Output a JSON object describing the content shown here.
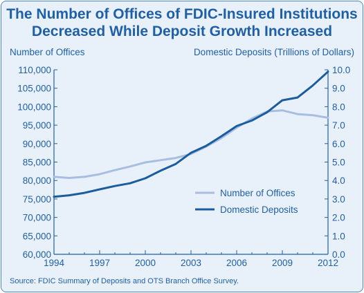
{
  "title_line1": "The Number of Offices of FDIC-Insured Institutions",
  "title_line2": "Decreased While Deposit Growth Increased",
  "source": "Source: FDIC Summary of Deposits and OTS Branch Office Survey.",
  "colors": {
    "frame_border": "#4a86c5",
    "background": "#e8f1fa",
    "text": "#1f5fa8",
    "offices": "#a9bde0",
    "deposits": "#1a5c9e"
  },
  "chart_data": {
    "type": "line",
    "title": "The Number of Offices of FDIC-Insured Institutions Decreased While Deposit Growth Increased",
    "ylabel_left": "Number of Offices",
    "ylabel_right": "Domestic Deposits (Trillions of Dollars)",
    "x": [
      1994,
      1995,
      1996,
      1997,
      1998,
      1999,
      2000,
      2001,
      2002,
      2003,
      2004,
      2005,
      2006,
      2007,
      2008,
      2009,
      2010,
      2011,
      2012
    ],
    "x_ticks": [
      "1994",
      "1997",
      "2000",
      "2003",
      "2006",
      "2009",
      "2012"
    ],
    "y_left_ticks": [
      "60,000",
      "65,000",
      "70,000",
      "75,000",
      "80,000",
      "85,000",
      "90,000",
      "95,000",
      "100,000",
      "105,000",
      "110,000"
    ],
    "y_right_ticks": [
      "0.0",
      "1.0",
      "2.0",
      "3.0",
      "4.0",
      "5.0",
      "6.0",
      "7.0",
      "8.0",
      "9.0",
      "10.0"
    ],
    "ylim_left": [
      60000,
      110000
    ],
    "ylim_right": [
      0,
      10
    ],
    "grid": false,
    "legend_position": "right",
    "series": [
      {
        "name": "Number of Offices",
        "axis": "left",
        "values": [
          81000,
          80700,
          81000,
          81700,
          82800,
          83800,
          84900,
          85500,
          86100,
          87200,
          89200,
          91500,
          94300,
          96800,
          98700,
          99000,
          98000,
          97700,
          97000
        ]
      },
      {
        "name": "Domestic Deposits",
        "axis": "right",
        "values": [
          3.12,
          3.2,
          3.33,
          3.52,
          3.7,
          3.85,
          4.12,
          4.53,
          4.9,
          5.5,
          5.88,
          6.4,
          6.95,
          7.25,
          7.7,
          8.35,
          8.5,
          9.15,
          9.9
        ]
      }
    ]
  }
}
